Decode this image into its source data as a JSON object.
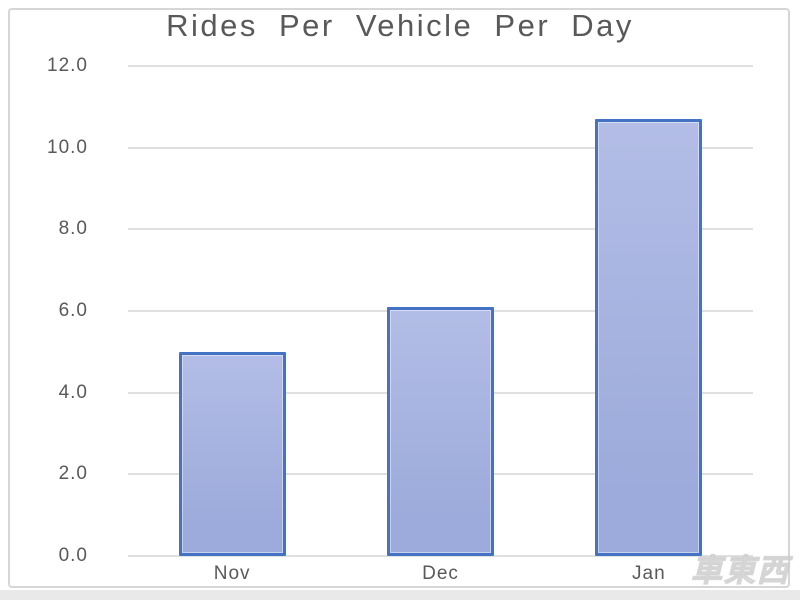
{
  "chart_data": {
    "type": "bar",
    "title": "Rides Per Vehicle Per Day",
    "categories": [
      "Nov",
      "Dec",
      "Jan"
    ],
    "values": [
      5.0,
      6.1,
      10.7
    ],
    "xlabel": "",
    "ylabel": "",
    "ylim": [
      0,
      12
    ],
    "ytick_step": 2,
    "ytick_labels": [
      "0.0",
      "2.0",
      "4.0",
      "6.0",
      "8.0",
      "10.0",
      "12.0"
    ],
    "grid": true,
    "legend_position": "none",
    "bar_fill_color": "#9cabdb",
    "bar_border_color": "#4472c4",
    "gridline_color": "#e0e0e0",
    "text_color": "#595959"
  },
  "watermark": {
    "text": "車東西"
  }
}
